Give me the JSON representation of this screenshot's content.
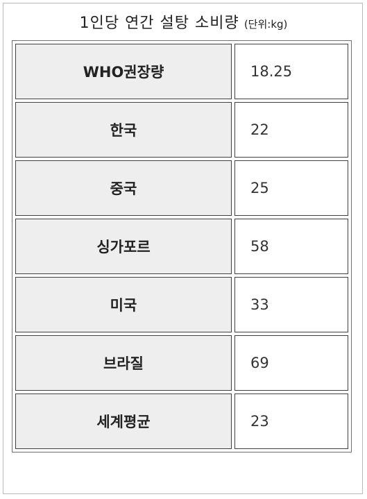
{
  "title": "1인당 연간 설탕 소비량",
  "unit": "(단위:kg)",
  "rows": [
    {
      "country": "WHO권장량",
      "value": "18.25"
    },
    {
      "country": "한국",
      "value": "22"
    },
    {
      "country": "중국",
      "value": "25"
    },
    {
      "country": "싱가포르",
      "value": "58"
    },
    {
      "country": "미국",
      "value": "33"
    },
    {
      "country": "브라질",
      "value": "69"
    },
    {
      "country": "세계평균",
      "value": "23"
    }
  ]
}
